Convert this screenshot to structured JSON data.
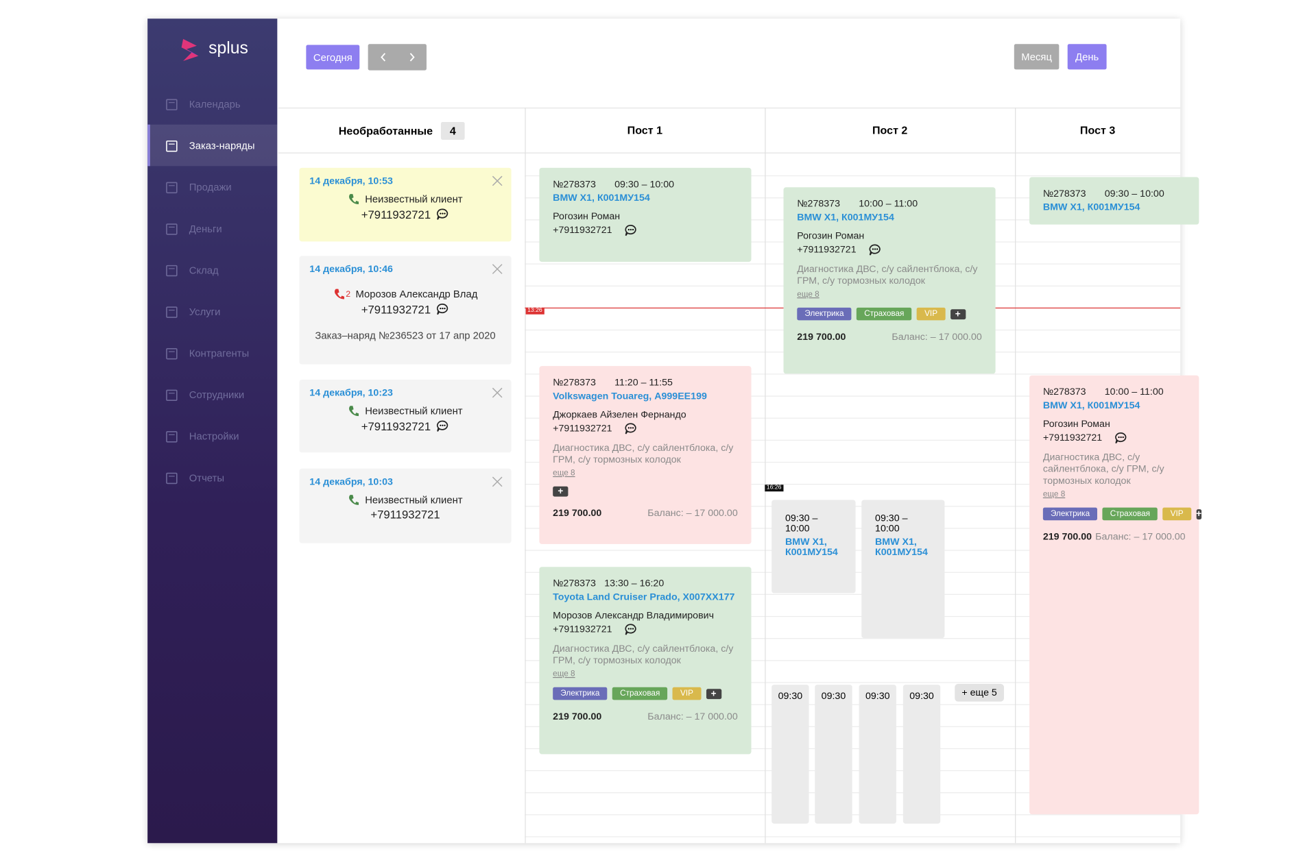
{
  "sidebar": {
    "logo": "splus",
    "active_item": 1,
    "menu": [
      "Календарь",
      "Заказ-наряды",
      "Продажи",
      "Деньги",
      "Склад",
      "Услуги",
      "Контрагенты",
      "Сотрудники",
      "Настройки",
      "Отчеты"
    ]
  },
  "toolbar": {
    "today": "Сегодня",
    "month": "Месяц",
    "day": "День"
  },
  "columns": {
    "unprocessed": {
      "title": "Необработанные",
      "count": 4
    },
    "posts": [
      "Пост 1",
      "Пост 2",
      "Пост 3"
    ]
  },
  "times": {
    "now": "13:26",
    "marker": "16:26"
  },
  "requests": [
    {
      "date": "14 декабря, 10:53",
      "client": "Неизвестный клиент",
      "phone": "+7911932721"
    },
    {
      "date": "14 декабря, 10:46",
      "missed_calls": 2,
      "client": "Морозов Александр Влад",
      "phone": "+7911932721",
      "note": "Заказ–наряд №236523 от 17 апр 2020"
    },
    {
      "date": "14 декабря, 10:23",
      "client": "Неизвестный клиент",
      "phone": "+7911932721"
    },
    {
      "date": "14 декабря, 10:03",
      "client": "Неизвестный клиент",
      "phone": "+7911932721"
    }
  ],
  "orders": [
    {
      "number": "№278373",
      "time": "09:30 – 10:00",
      "car": "BMW X1, К001МУ154",
      "client": "Рогозин Роман",
      "phone": "+7911932721"
    },
    {
      "number": "№278373",
      "time": "11:20 – 11:55",
      "car": "Volkswagen Touareg, А999ЕЕ199",
      "client": "Джоркаев Айзелен Фернандо",
      "phone": "+7911932721",
      "services": "Диагностика ДВС, с/у сайлентблока, с/у ГРМ, с/у тормозных колодок",
      "more": "еще 8",
      "total": "219 700.00",
      "balance": "Баланс: – 17 000.00"
    },
    {
      "number": "№278373",
      "time": "13:30 – 16:20",
      "car": "Toyota Land Cruiser Prado, Х007ХХ177",
      "client": "Морозов Александр Владимирович",
      "phone": "+7911932721",
      "services": "Диагностика ДВС, с/у сайлентблока, с/у ГРМ, с/у тормозных колодок",
      "more": "еще 8",
      "tags": [
        "Электрика",
        "Страховая",
        "VIP"
      ],
      "total": "219 700.00",
      "balance": "Баланс: – 17 000.00"
    },
    {
      "number": "№278373",
      "time": "10:00 – 11:00",
      "car": "BMW X1, К001МУ154",
      "client": "Рогозин Роман",
      "phone": "+7911932721",
      "services": "Диагностика ДВС, с/у сайлентблока, с/у ГРМ, с/у тормозных колодок",
      "more": "еще 8",
      "tags": [
        "Электрика",
        "Страховая",
        "VIP"
      ],
      "total": "219 700.00",
      "balance": "Баланс: – 17 000.00"
    },
    {
      "number": "№278373",
      "time": "09:30 – 10:00",
      "car": "BMW X1, К001МУ154"
    },
    {
      "number": "№278373",
      "time": "10:00 – 11:00",
      "car": "BMW X1, К001МУ154",
      "client": "Рогозин Роман",
      "phone": "+7911932721",
      "services": "Диагностика ДВС, с/у сайлентблока, с/у ГРМ, с/у тормозных колодок",
      "more": "еще 8",
      "tags": [
        "Электрика",
        "Страховая",
        "VIP"
      ],
      "total": "219 700.00",
      "balance": "Баланс: – 17 000.00"
    }
  ],
  "slots": [
    {
      "time": "09:30 – 10:00",
      "car": "BMW X1, К001МУ154"
    },
    {
      "time": "09:30 – 10:00",
      "car": "BMW X1, К001МУ154"
    }
  ],
  "short_slots": [
    "09:30",
    "09:30",
    "09:30",
    "09:30"
  ],
  "more_slots": "+ еще 5"
}
